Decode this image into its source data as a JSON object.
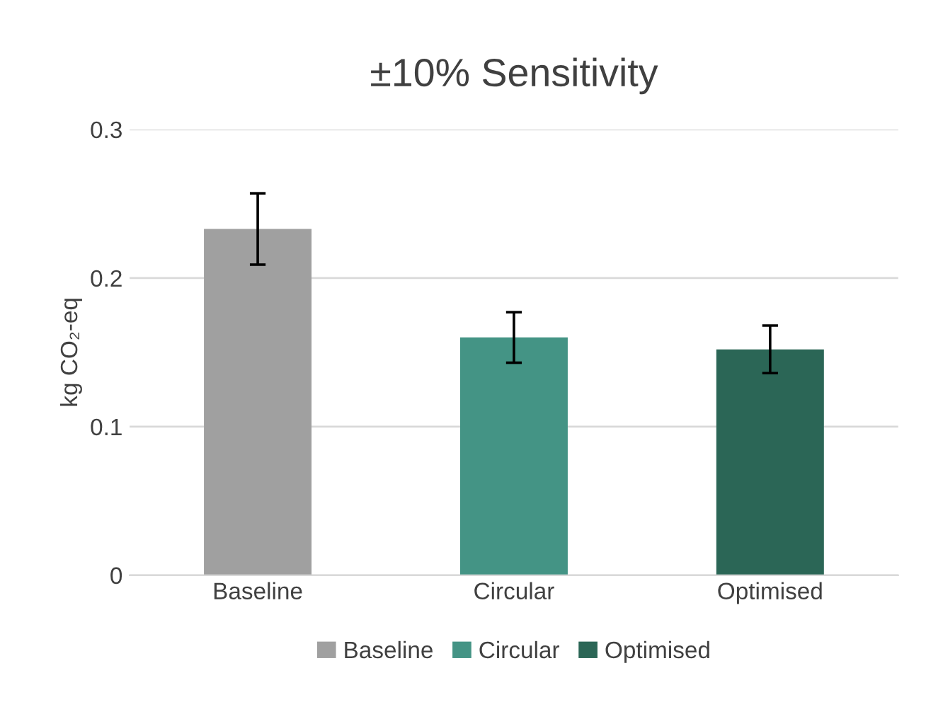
{
  "chart_data": {
    "type": "bar",
    "title": "±10% Sensitivity",
    "ylabel": "kg CO₂-eq",
    "categories": [
      "Baseline",
      "Circular",
      "Optimised"
    ],
    "series": [
      {
        "name": "Baseline",
        "color": "#a0a0a0",
        "values": [
          0.233,
          null,
          null
        ],
        "errors": [
          0.024,
          null,
          null
        ]
      },
      {
        "name": "Circular",
        "color": "#449485",
        "values": [
          null,
          0.16,
          null
        ],
        "errors": [
          null,
          0.017,
          null
        ]
      },
      {
        "name": "Optimised",
        "color": "#2b6656",
        "values": [
          null,
          null,
          0.152
        ],
        "errors": [
          null,
          null,
          0.016
        ]
      }
    ],
    "ylim": [
      0,
      0.3
    ],
    "yticks": [
      0,
      0.1,
      0.2,
      0.3
    ],
    "grid": "y",
    "legend": "bottom"
  }
}
